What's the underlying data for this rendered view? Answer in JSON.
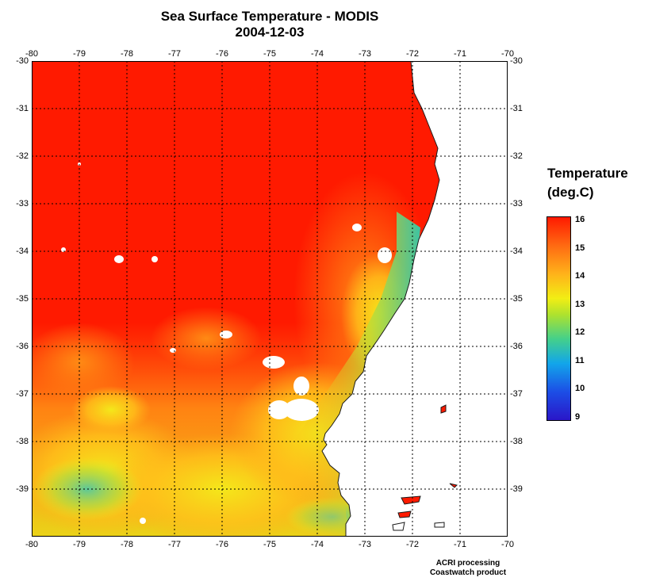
{
  "title": "Sea Surface Temperature - MODIS",
  "date": "2004-12-03",
  "legend": {
    "title_line1": "Temperature",
    "title_line2": "(deg.C)",
    "labels": [
      "16",
      "15",
      "14",
      "13",
      "12",
      "11",
      "10",
      "9"
    ]
  },
  "axes": {
    "lon_labels": [
      "-80",
      "-79",
      "-78",
      "-77",
      "-76",
      "-75",
      "-74",
      "-73",
      "-72",
      "-71",
      "-70"
    ],
    "lat_labels_top_right": [
      "-30",
      "-31",
      "-32",
      "-33",
      "-34",
      "-35",
      "-36",
      "-37",
      "-38",
      "-39"
    ],
    "lat_labels_left": [
      "-30",
      "-31",
      "-32",
      "-33",
      "-34",
      "-35",
      "-36",
      "-37",
      "-38",
      "-39"
    ]
  },
  "credits": {
    "line1": "ACRI processing",
    "line2": "Coastwatch product"
  },
  "colors": {
    "warm": "#ff1a00",
    "orange": "#ff7a10",
    "yellow": "#f2ee14",
    "green": "#44d08a",
    "cyan": "#12a6ea",
    "land": "#ffffff"
  }
}
